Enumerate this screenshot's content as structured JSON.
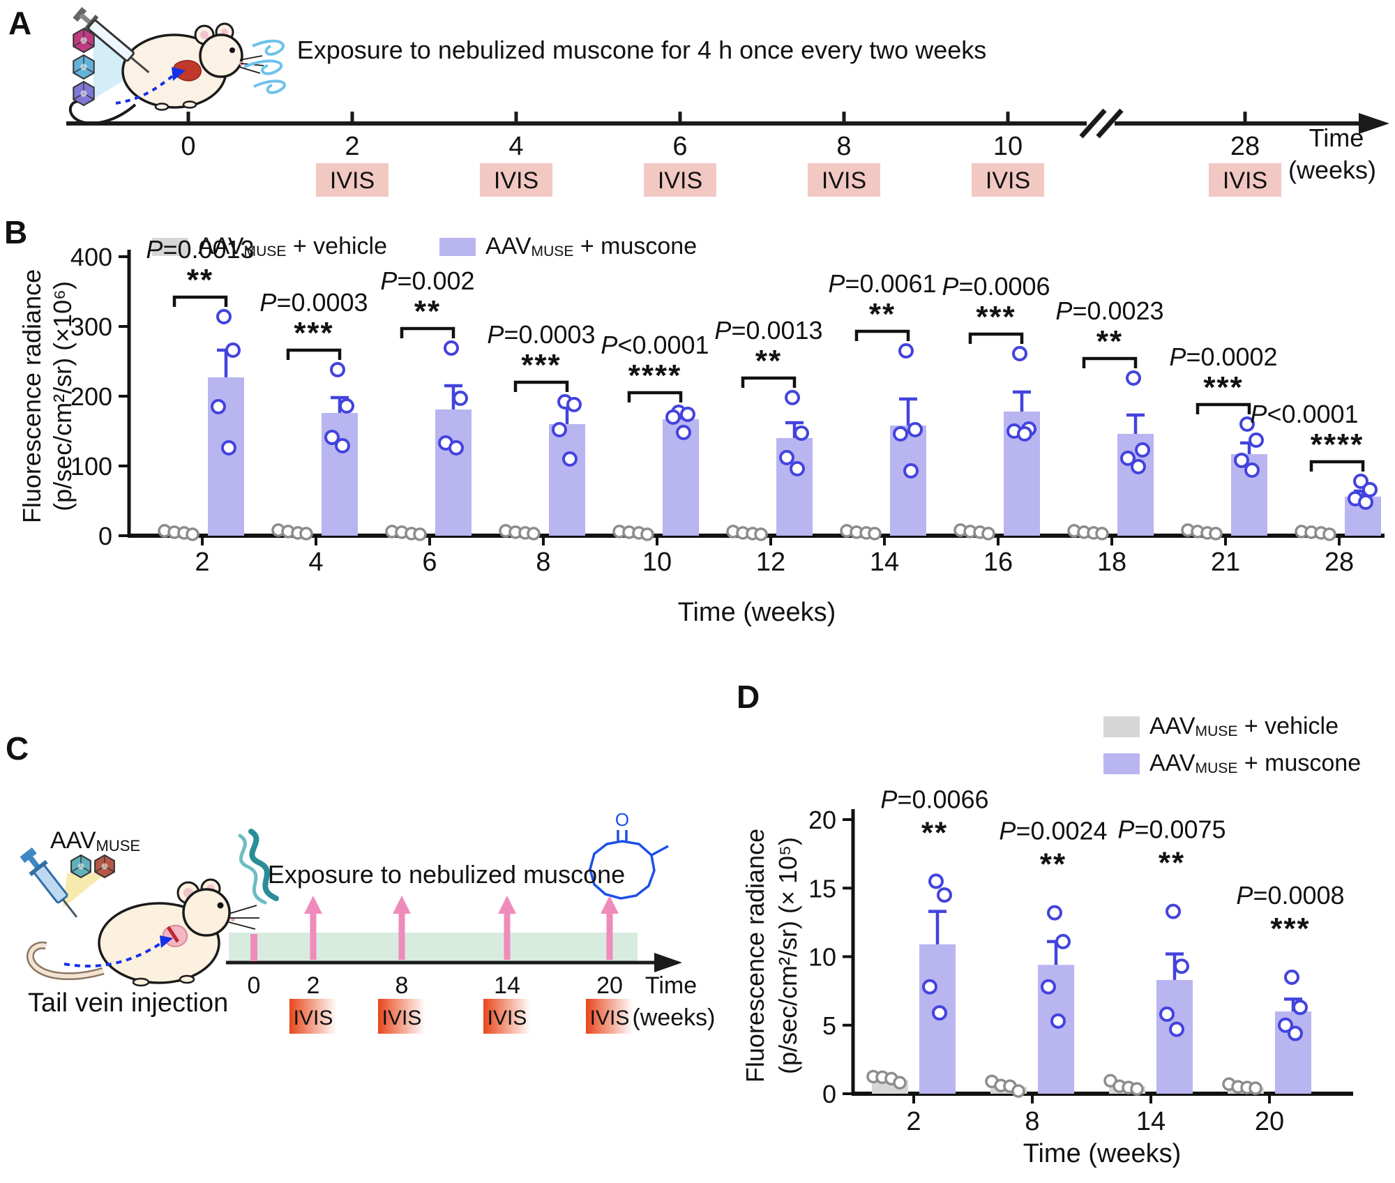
{
  "colors": {
    "bar_muscone": "#b9b5f1",
    "bar_vehicle": "#d6d6d6",
    "point_muscone": "#4343de",
    "point_vehicle": "#8c8c8c",
    "axis": "#111111",
    "ivis_box_panelA": "#f2c8c3",
    "ivis_gradient_start": "#e8471b",
    "ivis_gradient_end": "#ffffff",
    "pink_arrow": "#ef8bbb",
    "green_band": "#d7ebdf",
    "helix_teal": "#2a8d98",
    "molecule_blue": "#1b4fe8"
  },
  "legend": {
    "vehicle": {
      "prefix": "AAV",
      "sub": "MUSE",
      "suffix": " + vehicle",
      "color": "#d6d6d6"
    },
    "muscone": {
      "prefix": "AAV",
      "sub": "MUSE",
      "suffix": " + muscone",
      "color": "#b9b5f1"
    }
  },
  "panelA": {
    "label": "A",
    "exposure_text": "Exposure to nebulized muscone for 4 h once every two weeks",
    "ivis_label": "IVIS",
    "timeline": {
      "axis_label_line1": "Time",
      "axis_label_line2": "(weeks)",
      "has_break_before_last_tick": true,
      "ticks": [
        {
          "label": "0",
          "ivis": false
        },
        {
          "label": "2",
          "ivis": true
        },
        {
          "label": "4",
          "ivis": true
        },
        {
          "label": "6",
          "ivis": true
        },
        {
          "label": "8",
          "ivis": true
        },
        {
          "label": "10",
          "ivis": true
        },
        {
          "label": "28",
          "ivis": true
        }
      ]
    }
  },
  "panelB": {
    "label": "B"
  },
  "panelC": {
    "label": "C",
    "aav_prefix": "AAV",
    "aav_sub": "MUSE",
    "tail_label": "Tail vein injection",
    "exposure_text": "Exposure to nebulized muscone",
    "ivis_label": "IVIS",
    "timeline": {
      "axis_label_line1": "Time",
      "axis_label_line2": "(weeks)",
      "ticks": [
        {
          "label": "0",
          "arrow": false,
          "ivis": false
        },
        {
          "label": "2",
          "arrow": true,
          "ivis": true
        },
        {
          "label": "8",
          "arrow": true,
          "ivis": true
        },
        {
          "label": "14",
          "arrow": true,
          "ivis": true
        },
        {
          "label": "20",
          "arrow": true,
          "ivis": true
        }
      ]
    }
  },
  "panelD": {
    "label": "D"
  },
  "chart_data": [
    {
      "id": "B",
      "type": "bar",
      "title": "",
      "categories": [
        "2",
        "4",
        "6",
        "8",
        "10",
        "12",
        "14",
        "16",
        "18",
        "21",
        "28"
      ],
      "xlabel": "Time (weeks)",
      "ylabel_line1": "Fluorescence radiance",
      "ylabel_line2": "(p/sec/cm²/sr) (×10⁶)",
      "ylim": [
        0,
        400
      ],
      "yticks": [
        0,
        100,
        200,
        300,
        400
      ],
      "grid": false,
      "legend_position": "top-inside",
      "series": [
        {
          "name": "AAVMUSE + vehicle",
          "role": "vehicle",
          "values": [
            4,
            5,
            4,
            4,
            4,
            3,
            4,
            5,
            4,
            5,
            4
          ],
          "points": [
            [
              7,
              5,
              4,
              2
            ],
            [
              8,
              6,
              4,
              3
            ],
            [
              6,
              5,
              3,
              2
            ],
            [
              7,
              5,
              4,
              3
            ],
            [
              6,
              5,
              4,
              2
            ],
            [
              6,
              4,
              3,
              2
            ],
            [
              7,
              5,
              4,
              3
            ],
            [
              8,
              6,
              5,
              3
            ],
            [
              7,
              5,
              4,
              3
            ],
            [
              8,
              6,
              4,
              3
            ],
            [
              6,
              5,
              4,
              2
            ]
          ]
        },
        {
          "name": "AAVMUSE + muscone",
          "role": "muscone",
          "values": [
            227,
            176,
            181,
            160,
            167,
            140,
            158,
            178,
            146,
            117,
            56
          ],
          "sem": [
            39,
            22,
            34,
            29,
            6,
            22,
            38,
            28,
            27,
            16,
            8
          ],
          "points": [
            [
              314,
              266,
              185,
              126
            ],
            [
              238,
              186,
              141,
              129
            ],
            [
              269,
              197,
              133,
              126
            ],
            [
              192,
              188,
              152,
              110
            ],
            [
              177,
              174,
              170,
              148
            ],
            [
              198,
              147,
              112,
              96
            ],
            [
              265,
              152,
              146,
              93
            ],
            [
              261,
              153,
              150,
              146
            ],
            [
              226,
              123,
              111,
              99
            ],
            [
              160,
              137,
              108,
              94
            ],
            [
              78,
              66,
              53,
              48
            ]
          ]
        }
      ],
      "annotations": {
        "brackets": true,
        "p_values": [
          "P=0.0013",
          "P=0.0003",
          "P=0.002",
          "P=0.0003",
          "P<0.0001",
          "P=0.0013",
          "P=0.0061",
          "P=0.0006",
          "P=0.0023",
          "P=0.0002",
          "P<0.0001"
        ],
        "stars": [
          "**",
          "***",
          "**",
          "***",
          "****",
          "**",
          "**",
          "***",
          "**",
          "***",
          "****"
        ]
      }
    },
    {
      "id": "D",
      "type": "bar",
      "title": "",
      "categories": [
        "2",
        "8",
        "14",
        "20"
      ],
      "xlabel": "Time (weeks)",
      "ylabel_line1": "Fluorescence radiance",
      "ylabel_line2": "(p/sec/cm²/sr) (× 10⁵)",
      "ylim": [
        0,
        20
      ],
      "yticks": [
        0,
        5,
        10,
        15,
        20
      ],
      "grid": false,
      "legend_position": "top-right-outside",
      "series": [
        {
          "name": "AAVMUSE + vehicle",
          "role": "vehicle",
          "values": [
            1.0,
            0.5,
            0.55,
            0.45
          ],
          "points": [
            [
              1.25,
              1.2,
              1.1,
              0.8
            ],
            [
              0.9,
              0.6,
              0.55,
              0.2
            ],
            [
              0.95,
              0.55,
              0.45,
              0.35
            ],
            [
              0.7,
              0.5,
              0.45,
              0.4
            ]
          ]
        },
        {
          "name": "AAVMUSE + muscone",
          "role": "muscone",
          "values": [
            10.9,
            9.4,
            8.3,
            6.0
          ],
          "sem": [
            2.4,
            1.7,
            1.9,
            0.9
          ],
          "points": [
            [
              15.5,
              14.5,
              7.8,
              5.9
            ],
            [
              13.2,
              11.1,
              7.8,
              5.3
            ],
            [
              13.3,
              9.3,
              5.8,
              4.7
            ],
            [
              8.5,
              6.3,
              5.0,
              4.4
            ]
          ]
        }
      ],
      "annotations": {
        "brackets": false,
        "p_values": [
          "P=0.0066",
          "P=0.0024",
          "P=0.0075",
          "P=0.0008"
        ],
        "stars": [
          "**",
          "**",
          "**",
          "***"
        ]
      }
    }
  ]
}
